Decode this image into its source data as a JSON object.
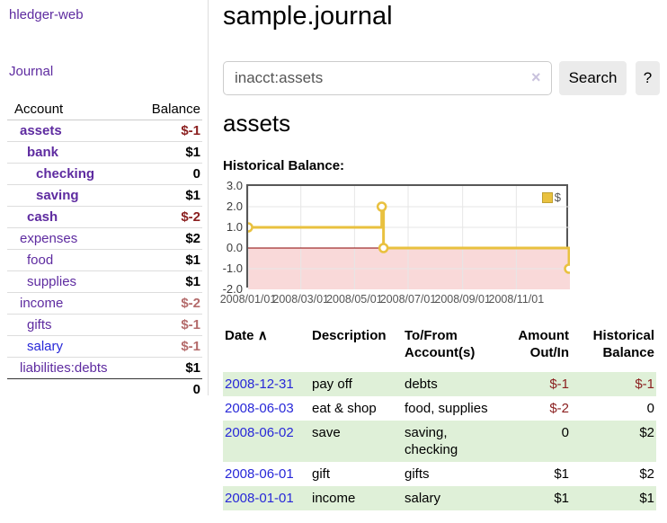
{
  "app": {
    "brand": "hledger-web"
  },
  "nav": {
    "journal": "Journal"
  },
  "sidebar": {
    "header": {
      "account": "Account",
      "balance": "Balance"
    },
    "accounts": [
      {
        "name": "assets",
        "depth": 1,
        "in_account": true,
        "balance": "$-1",
        "tone": "neg-strong"
      },
      {
        "name": "bank",
        "depth": 2,
        "in_account": true,
        "balance": "$1",
        "tone": "pos"
      },
      {
        "name": "checking",
        "depth": 3,
        "in_account": true,
        "balance": "0",
        "tone": "pos"
      },
      {
        "name": "saving",
        "depth": 3,
        "in_account": true,
        "balance": "$1",
        "tone": "pos"
      },
      {
        "name": "cash",
        "depth": 2,
        "in_account": true,
        "balance": "$-2",
        "tone": "neg-strong"
      },
      {
        "name": "expenses",
        "depth": 1,
        "in_account": false,
        "balance": "$2",
        "tone": "pos"
      },
      {
        "name": "food",
        "depth": 2,
        "in_account": false,
        "balance": "$1",
        "tone": "pos"
      },
      {
        "name": "supplies",
        "depth": 2,
        "in_account": false,
        "balance": "$1",
        "tone": "pos"
      },
      {
        "name": "income",
        "depth": 1,
        "in_account": false,
        "balance": "$-2",
        "tone": "neg-soft"
      },
      {
        "name": "gifts",
        "depth": 2,
        "in_account": false,
        "balance": "$-1",
        "tone": "neg-soft"
      },
      {
        "name": "salary",
        "depth": 2,
        "in_account": false,
        "balance": "$-1",
        "tone": "neg-soft",
        "link_tone": "unvisited"
      },
      {
        "name": "liabilities:debts",
        "depth": 1,
        "in_account": false,
        "balance": "$1",
        "tone": "pos"
      }
    ],
    "total": "0"
  },
  "main": {
    "title": "sample.journal",
    "search": {
      "value": "inacct:assets",
      "clear_icon": "×",
      "search_button": "Search",
      "help_button": "?"
    },
    "account_title": "assets",
    "chart_heading": "Historical Balance:"
  },
  "chart_data": {
    "type": "line",
    "step": true,
    "title": "Historical Balance:",
    "series": [
      {
        "name": "$",
        "color": "#e9c13f",
        "points": [
          [
            "2008-01-01",
            1
          ],
          [
            "2008-06-01",
            2
          ],
          [
            "2008-06-03",
            0
          ],
          [
            "2008-12-31",
            -1
          ]
        ]
      }
    ],
    "x_start": "2008-01-01",
    "x_end": "2009-01-01",
    "x_ticks": [
      {
        "date": "2008-01-01",
        "label": "2008/01/01"
      },
      {
        "date": "2008-03-01",
        "label": "2008/03/01"
      },
      {
        "date": "2008-05-01",
        "label": "2008/05/01"
      },
      {
        "date": "2008-07-01",
        "label": "2008/07/01"
      },
      {
        "date": "2008-09-01",
        "label": "2008/09/01"
      },
      {
        "date": "2008-11-01",
        "label": "2008/11/01"
      }
    ],
    "y_ticks": [
      {
        "v": 3,
        "label": "3.0"
      },
      {
        "v": 2,
        "label": "2.0"
      },
      {
        "v": 1,
        "label": "1.0"
      },
      {
        "v": 0,
        "label": "0.0"
      },
      {
        "v": -1,
        "label": "-1.0"
      },
      {
        "v": -2,
        "label": "-2.0"
      }
    ],
    "ylim": [
      -2,
      3
    ],
    "grid": true,
    "legend": {
      "label": "$",
      "position": "top-right"
    },
    "negative_region_color": "#f9d9d9",
    "zero_line_color": "#8b0000",
    "grid_color": "#e6e6e6"
  },
  "register": {
    "headers": {
      "date": "Date",
      "sort_icon": "∧",
      "description": "Description",
      "accounts_line1": "To/From",
      "accounts_line2": "Account(s)",
      "amount_line1": "Amount",
      "amount_line2": "Out/In",
      "balance_line1": "Historical",
      "balance_line2": "Balance"
    },
    "rows": [
      {
        "date": "2008-12-31",
        "description": "pay off",
        "accounts": "debts",
        "amount": "$-1",
        "amount_neg": true,
        "balance": "$-1",
        "balance_neg": true,
        "striped": true
      },
      {
        "date": "2008-06-03",
        "description": "eat & shop",
        "accounts": "food, supplies",
        "amount": "$-2",
        "amount_neg": true,
        "balance": "0",
        "balance_neg": false,
        "striped": false
      },
      {
        "date": "2008-06-02",
        "description": "save",
        "accounts": "saving, checking",
        "amount": "0",
        "amount_neg": false,
        "balance": "$2",
        "balance_neg": false,
        "striped": true
      },
      {
        "date": "2008-06-01",
        "description": "gift",
        "accounts": "gifts",
        "amount": "$1",
        "amount_neg": false,
        "balance": "$2",
        "balance_neg": false,
        "striped": false
      },
      {
        "date": "2008-01-01",
        "description": "income",
        "accounts": "salary",
        "amount": "$1",
        "amount_neg": false,
        "balance": "$1",
        "balance_neg": false,
        "striped": true
      }
    ]
  },
  "colors": {
    "link_purple": "#5e2ba0",
    "link_blue": "#2828d8",
    "negative_strong": "#8b2020",
    "negative_soft": "#b46b6b",
    "stripe_green": "#dff0d8",
    "accent_gold": "#e9c13f"
  }
}
